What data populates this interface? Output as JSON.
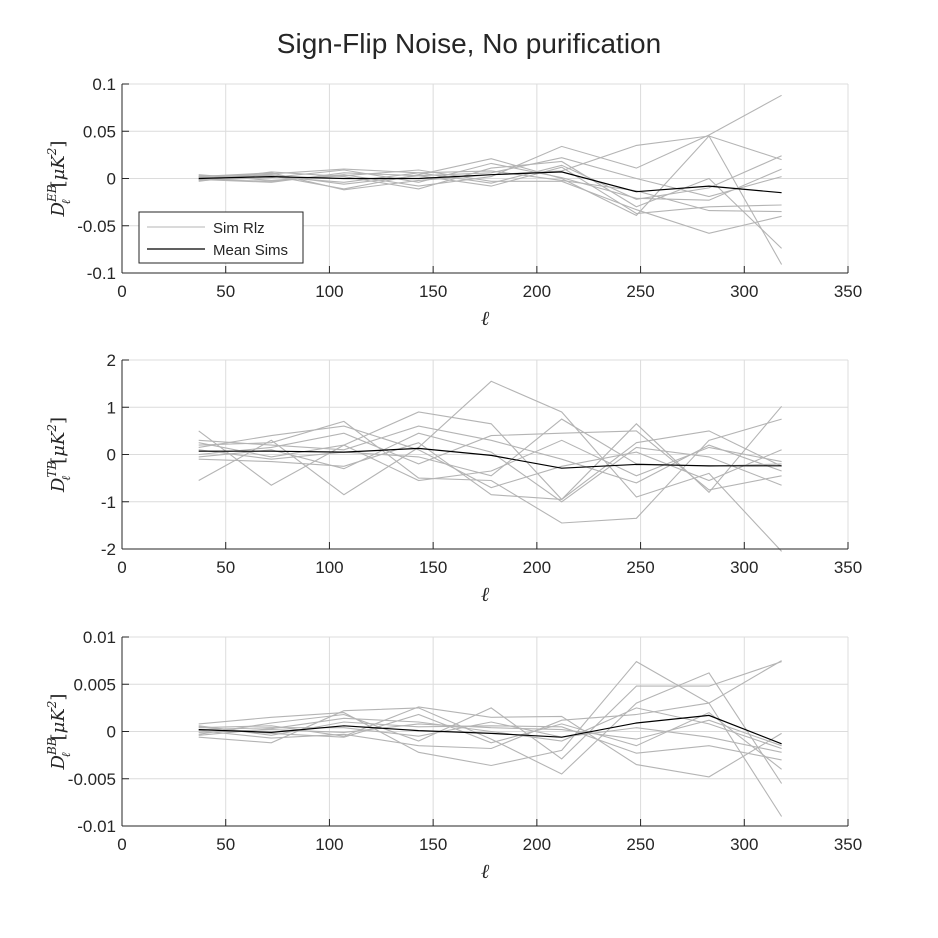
{
  "figure": {
    "title": "Sign-Flip Noise, No purification"
  },
  "chart_data": [
    {
      "type": "line",
      "id": "EB",
      "ylabel_spectrum": "EB",
      "xlabel": "ℓ",
      "xlim": [
        0,
        350
      ],
      "ylim": [
        -0.1,
        0.1
      ],
      "x_ticks": [
        0,
        50,
        100,
        150,
        200,
        250,
        300,
        350
      ],
      "y_ticks": [
        -0.1,
        -0.05,
        0,
        0.05,
        0.1
      ],
      "y_tick_labels": [
        "-0.1",
        "-0.05",
        "0",
        "0.05",
        "0.1"
      ],
      "grid": true,
      "legend": {
        "placement": "lower-left",
        "entries": [
          "Sim Rlz",
          "Mean Sims"
        ]
      },
      "x": [
        37,
        72,
        107,
        143,
        178,
        212,
        248,
        283,
        318
      ],
      "sims": [
        [
          0.001,
          0.003,
          -0.011,
          0.004,
          0.021,
          0.0,
          -0.039,
          0.045,
          -0.091
        ],
        [
          -0.001,
          -0.003,
          0.004,
          -0.008,
          0.002,
          0.034,
          0.011,
          0.046,
          0.088
        ],
        [
          0.002,
          0.005,
          0.01,
          0.006,
          -0.005,
          0.014,
          -0.022,
          -0.01,
          0.024
        ],
        [
          -0.003,
          0.007,
          0.002,
          -0.011,
          0.011,
          0.018,
          -0.03,
          0.0,
          -0.074
        ],
        [
          0.0,
          0.004,
          -0.006,
          0.003,
          0.006,
          0.022,
          0.0,
          -0.019,
          0.002
        ],
        [
          0.004,
          -0.002,
          0.003,
          0.009,
          -0.003,
          -0.003,
          -0.033,
          -0.058,
          -0.04
        ],
        [
          -0.002,
          0.001,
          0.009,
          -0.004,
          0.016,
          0.001,
          -0.021,
          -0.023,
          0.01
        ],
        [
          0.002,
          0.006,
          -0.012,
          -0.002,
          0.004,
          0.008,
          0.035,
          0.045,
          0.02
        ],
        [
          -0.001,
          -0.004,
          0.006,
          0.003,
          -0.008,
          0.012,
          -0.037,
          -0.03,
          -0.028
        ],
        [
          0.003,
          0.002,
          -0.004,
          0.006,
          0.008,
          -0.002,
          -0.013,
          -0.034,
          -0.035
        ]
      ],
      "mean": [
        0.0,
        0.002,
        0.0,
        0.0,
        0.004,
        0.007,
        -0.014,
        -0.008,
        -0.015
      ]
    },
    {
      "type": "line",
      "id": "TB",
      "ylabel_spectrum": "TB",
      "xlabel": "ℓ",
      "xlim": [
        0,
        350
      ],
      "ylim": [
        -2,
        2
      ],
      "x_ticks": [
        0,
        50,
        100,
        150,
        200,
        250,
        300,
        350
      ],
      "y_ticks": [
        -2,
        -1,
        0,
        1,
        2
      ],
      "y_tick_labels": [
        "-2",
        "-1",
        "0",
        "1",
        "2"
      ],
      "grid": true,
      "x": [
        37,
        72,
        107,
        143,
        178,
        212,
        248,
        283,
        318
      ],
      "sims": [
        [
          0.5,
          -0.65,
          0.2,
          0.9,
          0.65,
          -0.95,
          0.65,
          -0.8,
          1.02
        ],
        [
          -0.55,
          0.3,
          -0.85,
          0.15,
          1.55,
          0.9,
          -0.9,
          -0.4,
          -2.05
        ],
        [
          0.2,
          0.25,
          0.7,
          -0.5,
          -0.55,
          -1.45,
          -1.35,
          0.3,
          0.75
        ],
        [
          0.0,
          0.15,
          0.45,
          -0.2,
          0.4,
          0.45,
          0.5,
          -0.75,
          -0.45
        ],
        [
          -0.1,
          -0.15,
          -0.25,
          0.25,
          -0.85,
          -0.95,
          0.25,
          0.5,
          -0.25
        ],
        [
          0.3,
          0.2,
          0.1,
          0.6,
          0.3,
          -0.1,
          -0.6,
          0.2,
          -0.35
        ],
        [
          0.1,
          -0.1,
          0.05,
          -0.05,
          -0.45,
          0.75,
          -0.2,
          -0.25,
          -0.2
        ],
        [
          0.15,
          0.4,
          0.6,
          0.1,
          -0.7,
          -0.25,
          0.05,
          -0.55,
          0.1
        ],
        [
          -0.05,
          0.1,
          -0.3,
          0.45,
          0.05,
          -1.0,
          0.15,
          -0.05,
          -0.65
        ],
        [
          0.25,
          -0.05,
          0.2,
          -0.55,
          -0.35,
          0.3,
          -0.45,
          0.15,
          -0.15
        ]
      ],
      "mean": [
        0.07,
        0.07,
        0.05,
        0.13,
        -0.02,
        -0.29,
        -0.21,
        -0.24,
        -0.24
      ]
    },
    {
      "type": "line",
      "id": "BB",
      "ylabel_spectrum": "BB",
      "xlabel": "ℓ",
      "xlim": [
        0,
        350
      ],
      "ylim": [
        -0.01,
        0.01
      ],
      "x_ticks": [
        0,
        50,
        100,
        150,
        200,
        250,
        300,
        350
      ],
      "y_ticks": [
        -0.01,
        -0.005,
        0,
        0.005,
        0.01
      ],
      "y_tick_labels": [
        "-0.01",
        "-0.005",
        "0",
        "0.005",
        "0.01"
      ],
      "grid": true,
      "x": [
        37,
        72,
        107,
        143,
        178,
        212,
        248,
        283,
        318
      ],
      "sims": [
        [
          0.0008,
          0.0015,
          0.002,
          -0.0022,
          -0.0036,
          -0.002,
          0.0074,
          0.003,
          -0.009
        ],
        [
          -0.0006,
          -0.0012,
          0.0022,
          0.0025,
          -0.0008,
          -0.0045,
          0.003,
          0.0062,
          -0.0055
        ],
        [
          0.0004,
          0.0006,
          -0.0005,
          0.0026,
          0.0015,
          0.0016,
          -0.0035,
          -0.0048,
          -0.0002
        ],
        [
          -0.0003,
          0.0009,
          0.0018,
          -0.001,
          0.0025,
          -0.0029,
          0.0048,
          0.0048,
          0.0074
        ],
        [
          0.0006,
          -0.0004,
          0.001,
          0.0005,
          0.0006,
          0.0005,
          -0.0023,
          -0.0015,
          -0.003
        ],
        [
          0.0001,
          -0.0007,
          -0.0003,
          -0.0015,
          -0.0018,
          0.0012,
          0.0018,
          0.003,
          0.0075
        ],
        [
          -0.0004,
          0.0003,
          0.0014,
          0.001,
          0.0,
          -0.001,
          0.0025,
          0.0008,
          -0.0018
        ],
        [
          0.0005,
          -0.0002,
          -0.0006,
          0.0018,
          -0.0012,
          0.0008,
          -0.0015,
          0.002,
          -0.004
        ],
        [
          0.0002,
          0.0004,
          0.0004,
          -0.0005,
          0.001,
          -0.0006,
          0.0004,
          -0.0006,
          -0.0022
        ],
        [
          -0.0001,
          0.0002,
          -0.0001,
          0.0008,
          0.0004,
          0.0002,
          -0.0008,
          0.0012,
          -0.0015
        ]
      ],
      "mean": [
        0.0002,
        -0.0001,
        0.0006,
        0.0001,
        -0.0002,
        -0.0006,
        0.0009,
        0.0017,
        -0.0013
      ]
    }
  ]
}
